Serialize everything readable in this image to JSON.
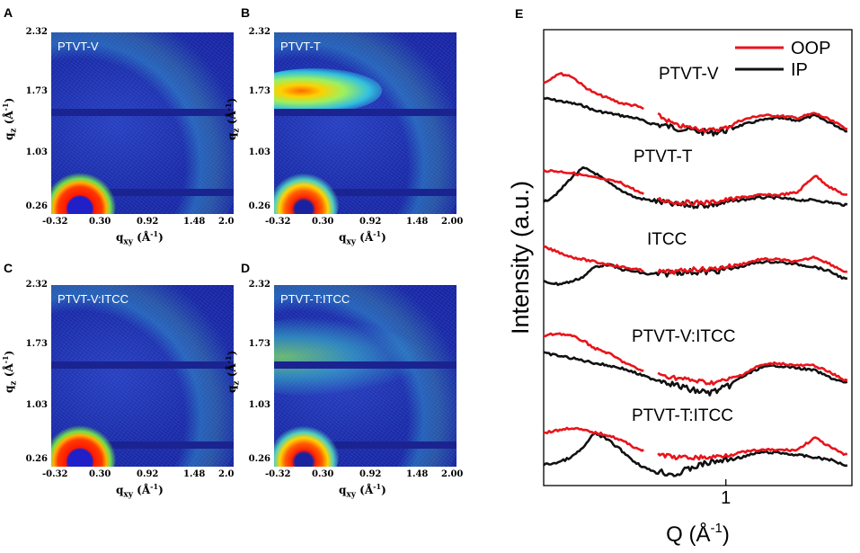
{
  "panels": {
    "A": {
      "letter": "A",
      "sample": "PTVT-V"
    },
    "B": {
      "letter": "B",
      "sample": "PTVT-T"
    },
    "C": {
      "letter": "C",
      "sample": "PTVT-V:ITCC"
    },
    "D": {
      "letter": "D",
      "sample": "PTVT-T:ITCC"
    },
    "E": {
      "letter": "E"
    }
  },
  "giwaxs_axes": {
    "qz_ticks": [
      "2.32",
      "1.73",
      "1.03",
      "0.26"
    ],
    "qxy_ticks_left": [
      "-0.32",
      "0.30",
      "0.92",
      "1.48",
      "2.0"
    ],
    "qxy_ticks_right": [
      "-0.32",
      "0.30",
      "0.92",
      "1.48",
      "2.00"
    ],
    "qz_label": "qz (Å⁻¹)",
    "qz_main": "q",
    "qz_sub": "z",
    "qz_unit": "(Å",
    "qz_exp": "-1",
    "qz_close": ")",
    "qxy_main": "q",
    "qxy_sub": "xy",
    "qxy_unit": "(Å",
    "qxy_exp": "-1",
    "qxy_close": ")"
  },
  "colors": {
    "oop": "#e8141b",
    "ip": "#111111"
  },
  "chart_data": {
    "type": "line",
    "title": "",
    "xlabel": "Q (Å-1)",
    "xlabel_main": "Q (Å",
    "xlabel_exp": "-1",
    "xlabel_close": ")",
    "ylabel": "Intensity (a.u.)",
    "xscale": "log",
    "xlim": [
      0.3,
      2.3
    ],
    "xticks": [
      {
        "value": 1,
        "label": "1"
      }
    ],
    "legend": {
      "position": "top-right",
      "entries": [
        "OOP",
        "IP"
      ]
    },
    "profiles": [
      {
        "label": "PTVT-V",
        "x": [
          0.3,
          0.33,
          0.36,
          0.39,
          0.42,
          0.46,
          0.5,
          0.55,
          0.6,
          0.66,
          0.72,
          0.8,
          0.9,
          1.0,
          1.1,
          1.25,
          1.4,
          1.6,
          1.8,
          2.0,
          2.2
        ],
        "oop": [
          0.35,
          0.55,
          0.5,
          0.3,
          0.15,
          0.05,
          -0.05,
          -0.1,
          -0.2,
          -0.35,
          -0.5,
          -0.55,
          -0.6,
          -0.55,
          -0.4,
          -0.3,
          -0.3,
          -0.35,
          -0.25,
          -0.4,
          -0.55
        ],
        "ip": [
          0.05,
          0.0,
          -0.05,
          -0.1,
          -0.2,
          -0.25,
          -0.3,
          -0.35,
          -0.45,
          -0.5,
          -0.55,
          -0.6,
          -0.65,
          -0.6,
          -0.5,
          -0.4,
          -0.35,
          -0.4,
          -0.3,
          -0.45,
          -0.6
        ]
      },
      {
        "label": "PTVT-T",
        "x": [
          0.3,
          0.33,
          0.36,
          0.39,
          0.42,
          0.46,
          0.5,
          0.55,
          0.6,
          0.66,
          0.72,
          0.8,
          0.9,
          1.0,
          1.1,
          1.25,
          1.4,
          1.6,
          1.8,
          2.0,
          2.2
        ],
        "oop": [
          0.1,
          0.08,
          0.05,
          0.0,
          -0.05,
          -0.1,
          -0.15,
          -0.3,
          -0.45,
          -0.5,
          -0.55,
          -0.55,
          -0.55,
          -0.5,
          -0.45,
          -0.4,
          -0.4,
          -0.35,
          0.0,
          -0.25,
          -0.4
        ],
        "ip": [
          -0.55,
          -0.35,
          -0.05,
          0.15,
          0.05,
          -0.15,
          -0.3,
          -0.45,
          -0.5,
          -0.55,
          -0.6,
          -0.6,
          -0.6,
          -0.55,
          -0.5,
          -0.45,
          -0.45,
          -0.5,
          -0.5,
          -0.55,
          -0.6
        ]
      },
      {
        "label": "ITCC",
        "x": [
          0.3,
          0.33,
          0.36,
          0.39,
          0.42,
          0.46,
          0.5,
          0.55,
          0.6,
          0.66,
          0.72,
          0.8,
          0.9,
          1.0,
          1.1,
          1.25,
          1.4,
          1.6,
          1.8,
          2.0,
          2.2
        ],
        "oop": [
          0.15,
          0.05,
          -0.05,
          -0.1,
          -0.15,
          -0.2,
          -0.25,
          -0.3,
          -0.35,
          -0.35,
          -0.35,
          -0.3,
          -0.3,
          -0.25,
          -0.2,
          -0.1,
          -0.1,
          -0.15,
          -0.05,
          -0.2,
          -0.35
        ],
        "ip": [
          -0.55,
          -0.6,
          -0.55,
          -0.45,
          -0.25,
          -0.2,
          -0.3,
          -0.35,
          -0.4,
          -0.4,
          -0.35,
          -0.35,
          -0.35,
          -0.3,
          -0.25,
          -0.15,
          -0.15,
          -0.2,
          -0.25,
          -0.35,
          -0.5
        ]
      },
      {
        "label": "PTVT-V:ITCC",
        "x": [
          0.3,
          0.33,
          0.36,
          0.39,
          0.42,
          0.46,
          0.5,
          0.55,
          0.6,
          0.66,
          0.72,
          0.8,
          0.9,
          1.0,
          1.1,
          1.25,
          1.4,
          1.6,
          1.8,
          2.0,
          2.2
        ],
        "oop": [
          0.3,
          0.35,
          0.3,
          0.2,
          0.05,
          -0.05,
          -0.2,
          -0.35,
          -0.45,
          -0.5,
          -0.55,
          -0.6,
          -0.65,
          -0.6,
          -0.5,
          -0.3,
          -0.25,
          -0.3,
          -0.3,
          -0.45,
          -0.6
        ],
        "ip": [
          -0.05,
          -0.1,
          -0.15,
          -0.2,
          -0.25,
          -0.3,
          -0.35,
          -0.45,
          -0.55,
          -0.6,
          -0.7,
          -0.8,
          -0.85,
          -0.75,
          -0.55,
          -0.35,
          -0.3,
          -0.35,
          -0.4,
          -0.55,
          -0.65
        ]
      },
      {
        "label": "PTVT-T:ITCC",
        "x": [
          0.3,
          0.33,
          0.36,
          0.39,
          0.42,
          0.46,
          0.5,
          0.55,
          0.6,
          0.66,
          0.72,
          0.8,
          0.9,
          1.0,
          1.1,
          1.25,
          1.4,
          1.6,
          1.8,
          2.0,
          2.2
        ],
        "oop": [
          0.05,
          0.1,
          0.15,
          0.1,
          0.05,
          0.0,
          -0.1,
          -0.25,
          -0.35,
          -0.4,
          -0.45,
          -0.45,
          -0.45,
          -0.4,
          -0.35,
          -0.3,
          -0.3,
          -0.3,
          -0.05,
          -0.25,
          -0.4
        ],
        "ip": [
          -0.6,
          -0.55,
          -0.45,
          -0.25,
          0.05,
          -0.1,
          -0.3,
          -0.55,
          -0.7,
          -0.75,
          -0.8,
          -0.65,
          -0.55,
          -0.5,
          -0.45,
          -0.35,
          -0.35,
          -0.4,
          -0.45,
          -0.5,
          -0.6
        ]
      }
    ]
  }
}
